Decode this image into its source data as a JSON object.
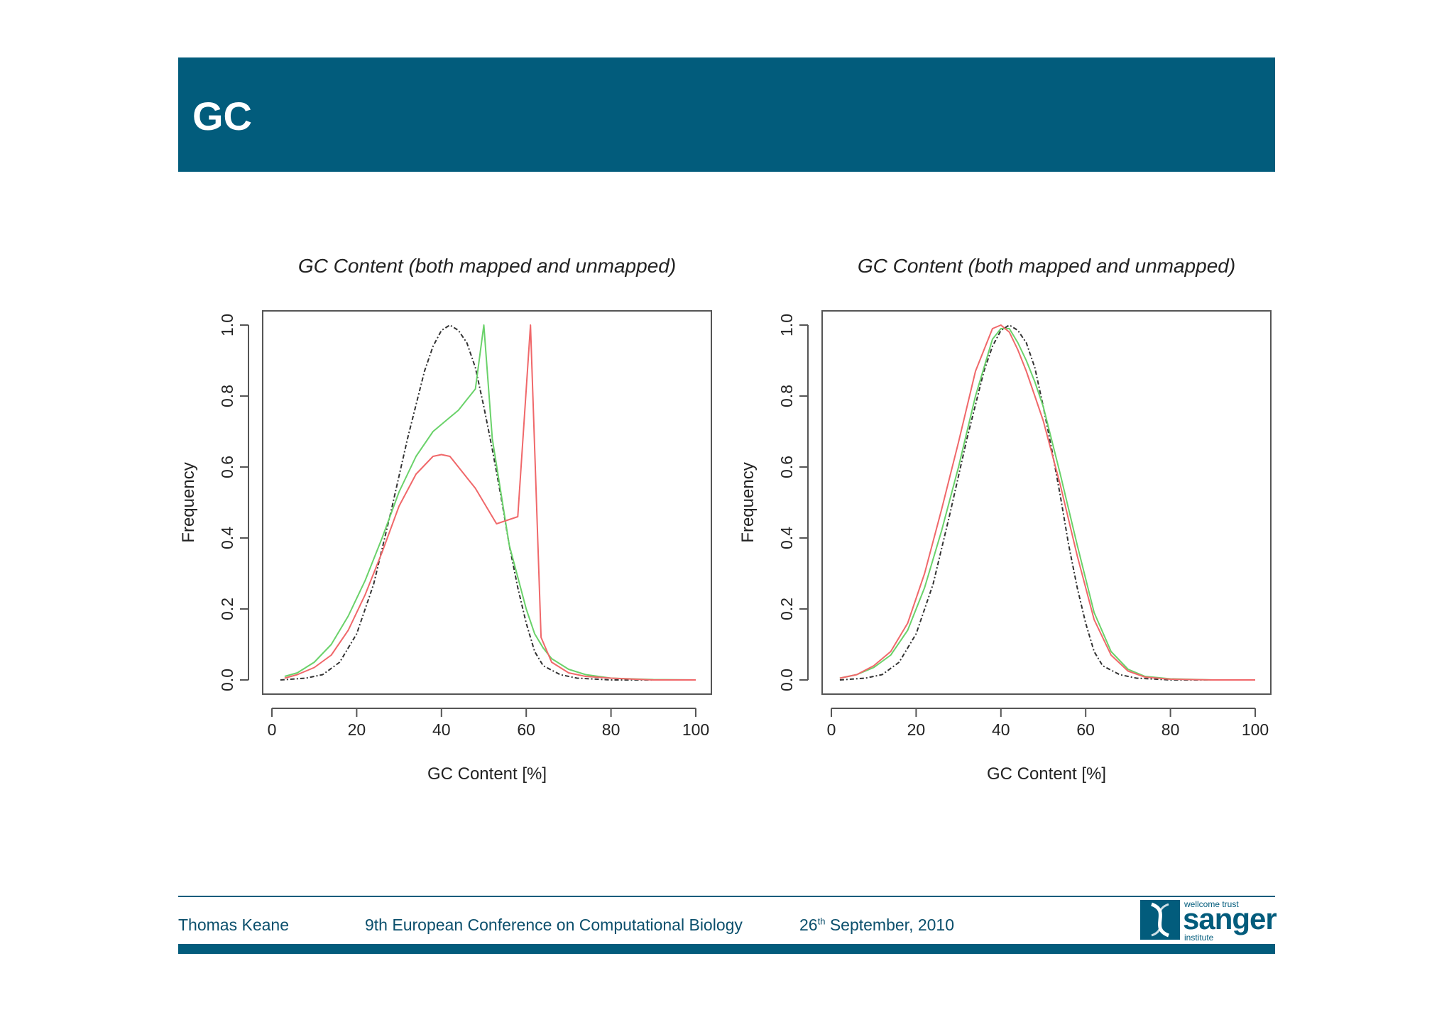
{
  "slide": {
    "title": "GC"
  },
  "footer": {
    "author": "Thomas Keane",
    "conference": "9th European Conference on Computational Biology",
    "date_day": "26",
    "date_suffix": "th",
    "date_rest": "September, 2010",
    "logo_top": "wellcome trust",
    "logo_main": "sanger",
    "logo_bottom": "institute"
  },
  "colors": {
    "header": "#025c7c",
    "red_series": "#f0686a",
    "green_series": "#6ad26a",
    "black_series": "#333333"
  },
  "chart_data": [
    {
      "type": "line",
      "title": "GC Content (both mapped and unmapped)",
      "xlabel": "GC Content [%]",
      "ylabel": "Frequency",
      "xlim": [
        0,
        100
      ],
      "ylim": [
        0,
        1
      ],
      "xticks": [
        "0",
        "20",
        "40",
        "60",
        "80",
        "100"
      ],
      "yticks": [
        "0.0",
        "0.2",
        "0.4",
        "0.6",
        "0.8",
        "1.0"
      ],
      "series": [
        {
          "name": "dashed",
          "color": "#333333",
          "dash": true,
          "x": [
            2,
            8,
            12,
            16,
            20,
            24,
            28,
            32,
            36,
            38,
            40,
            42,
            44,
            46,
            48,
            50,
            52,
            54,
            56,
            58,
            60,
            62,
            64,
            68,
            72,
            80,
            90,
            100
          ],
          "y": [
            0.0,
            0.005,
            0.015,
            0.05,
            0.13,
            0.27,
            0.47,
            0.68,
            0.87,
            0.94,
            0.985,
            1.0,
            0.985,
            0.95,
            0.88,
            0.77,
            0.65,
            0.52,
            0.38,
            0.26,
            0.16,
            0.08,
            0.04,
            0.015,
            0.005,
            0.0,
            0.0,
            0.0
          ]
        },
        {
          "name": "green",
          "color": "#6ad26a",
          "dash": false,
          "x": [
            3,
            6,
            10,
            14,
            18,
            22,
            26,
            30,
            34,
            38,
            42,
            44,
            46,
            48,
            50,
            52,
            56,
            60,
            62,
            64,
            66,
            70,
            74,
            80,
            90,
            100
          ],
          "y": [
            0.01,
            0.02,
            0.05,
            0.1,
            0.18,
            0.28,
            0.4,
            0.53,
            0.63,
            0.7,
            0.74,
            0.76,
            0.79,
            0.82,
            1.0,
            0.68,
            0.38,
            0.2,
            0.13,
            0.09,
            0.06,
            0.03,
            0.015,
            0.005,
            0.001,
            0.0
          ]
        },
        {
          "name": "red",
          "color": "#f0686a",
          "dash": false,
          "x": [
            3,
            6,
            10,
            14,
            18,
            22,
            26,
            30,
            34,
            38,
            40,
            42,
            44,
            46,
            48,
            50,
            53,
            58,
            61,
            63.5,
            66,
            70,
            74,
            80,
            90,
            100
          ],
          "y": [
            0.005,
            0.015,
            0.035,
            0.07,
            0.14,
            0.24,
            0.36,
            0.49,
            0.58,
            0.63,
            0.635,
            0.63,
            0.6,
            0.57,
            0.54,
            0.5,
            0.44,
            0.46,
            1.0,
            0.12,
            0.05,
            0.02,
            0.01,
            0.005,
            0.0,
            0.0
          ]
        }
      ]
    },
    {
      "type": "line",
      "title": "GC Content (both mapped and unmapped)",
      "xlabel": "GC Content [%]",
      "ylabel": "Frequency",
      "xlim": [
        0,
        100
      ],
      "ylim": [
        0,
        1
      ],
      "xticks": [
        "0",
        "20",
        "40",
        "60",
        "80",
        "100"
      ],
      "yticks": [
        "0.0",
        "0.2",
        "0.4",
        "0.6",
        "0.8",
        "1.0"
      ],
      "series": [
        {
          "name": "dashed",
          "color": "#333333",
          "dash": true,
          "x": [
            2,
            8,
            12,
            16,
            20,
            24,
            28,
            32,
            36,
            38,
            40,
            42,
            44,
            46,
            48,
            50,
            52,
            54,
            56,
            58,
            60,
            62,
            64,
            68,
            72,
            80,
            90,
            100
          ],
          "y": [
            0.0,
            0.005,
            0.015,
            0.05,
            0.13,
            0.27,
            0.47,
            0.68,
            0.87,
            0.94,
            0.985,
            1.0,
            0.985,
            0.95,
            0.88,
            0.77,
            0.65,
            0.52,
            0.38,
            0.26,
            0.16,
            0.08,
            0.04,
            0.015,
            0.005,
            0.0,
            0.0,
            0.0
          ]
        },
        {
          "name": "green",
          "color": "#6ad26a",
          "dash": false,
          "x": [
            2,
            6,
            10,
            14,
            18,
            22,
            26,
            30,
            34,
            38,
            40,
            42,
            44,
            46,
            48,
            50,
            54,
            58,
            62,
            66,
            70,
            74,
            80,
            90,
            100
          ],
          "y": [
            0.005,
            0.015,
            0.035,
            0.07,
            0.14,
            0.26,
            0.42,
            0.6,
            0.8,
            0.96,
            0.99,
            0.99,
            0.95,
            0.9,
            0.84,
            0.77,
            0.58,
            0.38,
            0.19,
            0.08,
            0.03,
            0.01,
            0.003,
            0.0,
            0.0
          ]
        },
        {
          "name": "red",
          "color": "#f0686a",
          "dash": false,
          "x": [
            2,
            6,
            10,
            14,
            18,
            22,
            26,
            30,
            34,
            38,
            40,
            42,
            44,
            46,
            48,
            50,
            54,
            58,
            62,
            66,
            70,
            74,
            80,
            90,
            100
          ],
          "y": [
            0.005,
            0.015,
            0.04,
            0.08,
            0.16,
            0.3,
            0.48,
            0.67,
            0.87,
            0.99,
            1.0,
            0.98,
            0.93,
            0.87,
            0.8,
            0.73,
            0.55,
            0.35,
            0.17,
            0.07,
            0.025,
            0.008,
            0.002,
            0.0,
            0.0
          ]
        }
      ]
    }
  ]
}
